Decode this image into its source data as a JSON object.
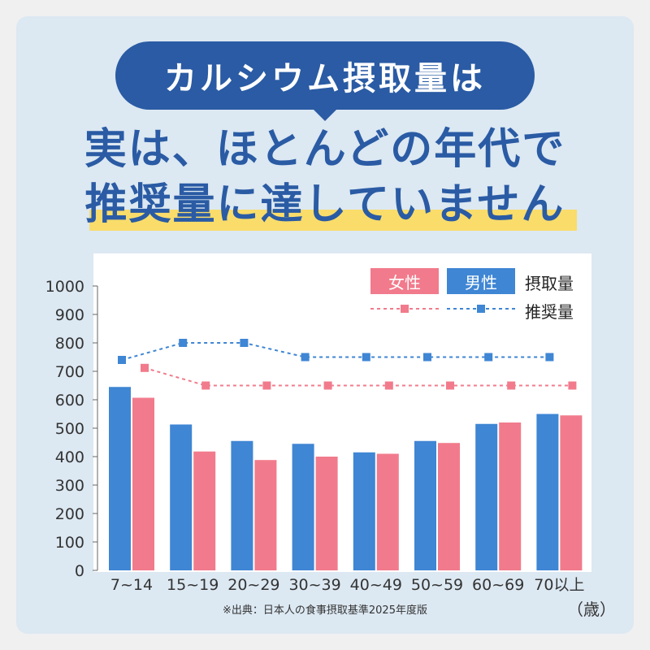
{
  "header": {
    "pill_text": "カルシウム摂取量は",
    "headline_line1": "実は、ほとんどの年代で",
    "headline_line2": "推奨量に達していません"
  },
  "legend": {
    "female": "女性",
    "male": "男性",
    "intake_label": "摂取量",
    "recommended_label": "推奨量"
  },
  "unit_label": "（歳）",
  "source": "※出典：日本人の食事摂取基準2025年度版",
  "colors": {
    "female": "#f17b8c",
    "male": "#3f86d4",
    "accent": "#2a5ba4",
    "marker": "#f9dc6a"
  },
  "chart_data": {
    "type": "bar",
    "categories": [
      "7~14",
      "15~19",
      "20~29",
      "30~39",
      "40~49",
      "50~59",
      "60~69",
      "70以上"
    ],
    "y_ticks": [
      0,
      100,
      200,
      300,
      400,
      500,
      600,
      700,
      800,
      900,
      1000
    ],
    "ylim": [
      0,
      1000
    ],
    "series": [
      {
        "name": "男性",
        "kind": "bar",
        "values": [
          645,
          513,
          455,
          445,
          415,
          455,
          515,
          550
        ]
      },
      {
        "name": "女性",
        "kind": "bar",
        "values": [
          607,
          418,
          388,
          400,
          410,
          448,
          520,
          545
        ]
      },
      {
        "name": "男性",
        "kind": "line",
        "values": [
          740,
          800,
          800,
          750,
          750,
          750,
          750,
          750
        ]
      },
      {
        "name": "女性",
        "kind": "line",
        "values": [
          712,
          650,
          650,
          650,
          650,
          650,
          650,
          650
        ]
      }
    ]
  }
}
